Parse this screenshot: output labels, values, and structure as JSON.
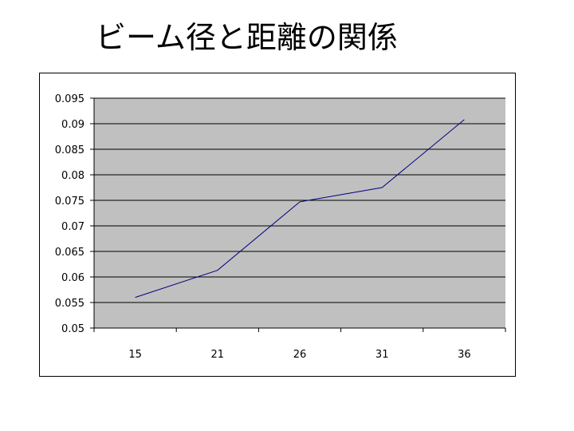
{
  "slide": {
    "title": "ビーム径と距離の関係"
  },
  "chart_data": {
    "type": "line",
    "title": "",
    "xlabel": "",
    "ylabel": "",
    "categories": [
      "15",
      "21",
      "26",
      "31",
      "36"
    ],
    "series": [
      {
        "values": [
          0.056,
          0.0613,
          0.0747,
          0.0775,
          0.0908
        ]
      }
    ],
    "ylim": [
      0.05,
      0.095
    ],
    "yticks": [
      "0.05",
      "0.055",
      "0.06",
      "0.065",
      "0.07",
      "0.075",
      "0.08",
      "0.085",
      "0.09",
      "0.095"
    ],
    "grid": true,
    "legend": "none",
    "colors": {
      "plot_background": "#C0C0C0",
      "line": "#000080",
      "gridlines": "#000000"
    }
  }
}
